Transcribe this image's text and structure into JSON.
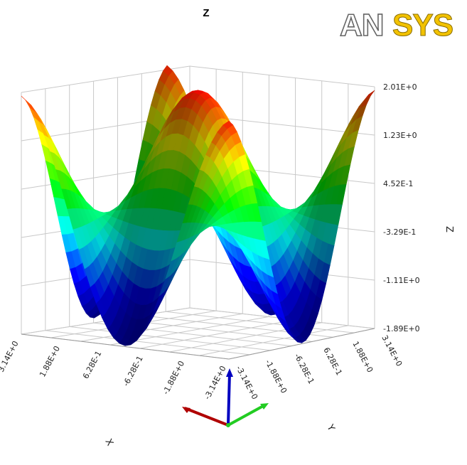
{
  "chart_data": {
    "type": "surface",
    "title": "Z",
    "xlabel": "X",
    "ylabel": "Y",
    "zlabel": "Z",
    "x_ticks": [
      "3.14E+0",
      "1.88E+0",
      "6.28E-1",
      "-6.28E-1",
      "-1.88E+0",
      "-3.14E+0"
    ],
    "y_ticks": [
      "3.14E+0",
      "1.88E+0",
      "6.28E-1",
      "-6.28E-1",
      "-1.88E+0",
      "-3.14E+0"
    ],
    "z_ticks": [
      "2.01E+0",
      "1.23E+0",
      "4.52E-1",
      "-3.29E-1",
      "-1.11E+0",
      "-1.89E+0"
    ],
    "xlim": [
      -3.14,
      3.14
    ],
    "ylim": [
      -3.14,
      3.14
    ],
    "zlim": [
      -1.89,
      2.01
    ],
    "grid": true,
    "colormap": [
      "#000080",
      "#0000ff",
      "#00ffff",
      "#00ff00",
      "#ffff00",
      "#ff0000"
    ],
    "logo": "ANSYS",
    "logo_colors": {
      "an": "#ffffff",
      "sys": "#f2c200",
      "outline": "#666666"
    }
  }
}
